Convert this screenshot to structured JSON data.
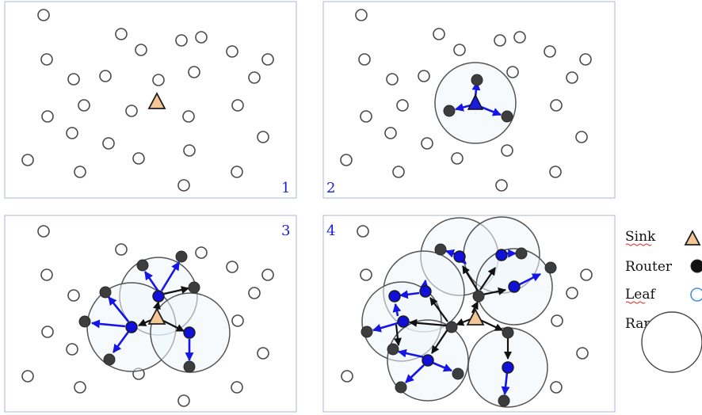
{
  "panels": [
    {
      "number": "1"
    },
    {
      "number": "2"
    },
    {
      "number": "3"
    },
    {
      "number": "4"
    }
  ],
  "legend": {
    "sink": "Sink",
    "router": "Router",
    "leaf": "Leaf",
    "range": "Range"
  },
  "colors": {
    "sink_fill": "#f6c796",
    "router_fill": "#3d3d3d",
    "joined_node_fill": "#1010d8",
    "leaf_outline": "#4a90e2",
    "blue_link": "#1515e6",
    "black_link": "#111111",
    "range_fill": "#eef5fb",
    "panel_number": "#2020d0"
  }
}
